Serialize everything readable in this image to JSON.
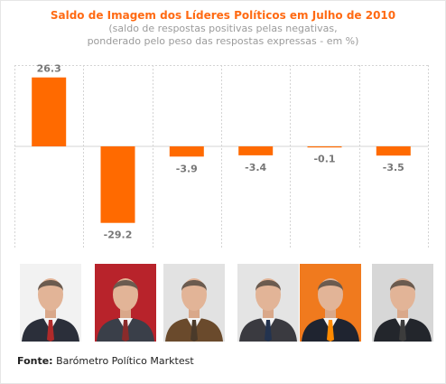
{
  "chart_data": {
    "type": "bar",
    "title": "Saldo de Imagem dos Líderes Políticos em Julho de 2010",
    "subtitle": [
      "(saldo de respostas positivas pelas negativas,",
      "ponderado pelo peso das respostas expressas - em %)"
    ],
    "categories": [
      "",
      "",
      "",
      "",
      "",
      ""
    ],
    "values": [
      26.3,
      -29.2,
      -3.9,
      -3.4,
      -0.1,
      -3.5
    ],
    "value_labels": [
      "26.3",
      "-29.2",
      "-3.9",
      "-3.4",
      "-0.1",
      "-3.5"
    ],
    "ylim": [
      -40,
      40
    ],
    "bar_color": "#ff6a00",
    "grid": true,
    "legend": "none"
  },
  "source": {
    "label": "Fonte:",
    "text": "Barómetro Político Marktest"
  },
  "photos": [
    {
      "name": "portrait-1",
      "bg": "#f2f2f2",
      "suit": "#2b2f3a",
      "tie": "#b02a2a"
    },
    {
      "name": "portrait-2",
      "bg": "#b8232b",
      "suit": "#3a3f49",
      "tie": "#8a2b2b"
    },
    {
      "name": "portrait-3",
      "bg": "#e2e2e2",
      "suit": "#6a4a2c",
      "tie": "#4a3a2a"
    },
    {
      "name": "portrait-4",
      "bg": "#e4e4e4",
      "suit": "#3a3a40",
      "tie": "#23334f"
    },
    {
      "name": "portrait-5",
      "bg": "#f07a1e",
      "suit": "#1f2430",
      "tie": "#ff8a00"
    },
    {
      "name": "portrait-6",
      "bg": "#d7d7d7",
      "suit": "#23262c",
      "tie": "#3c3c3c"
    }
  ]
}
